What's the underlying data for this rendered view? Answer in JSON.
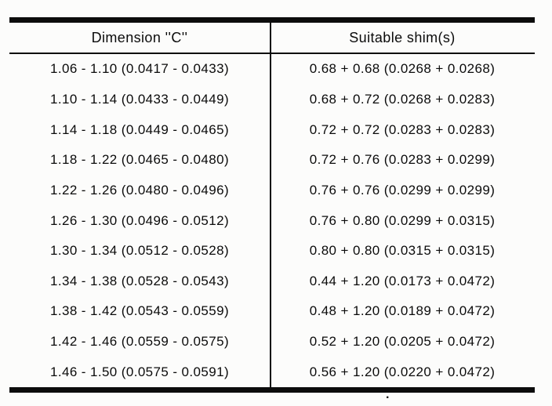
{
  "table": {
    "headers": {
      "dimension": "Dimension ''C''",
      "shims": "Suitable shim(s)"
    },
    "rows": [
      {
        "dimension": "1.06 - 1.10 (0.0417 - 0.0433)",
        "shims": "0.68 + 0.68 (0.0268 + 0.0268)"
      },
      {
        "dimension": "1.10 - 1.14 (0.0433 - 0.0449)",
        "shims": "0.68 + 0.72 (0.0268 + 0.0283)"
      },
      {
        "dimension": "1.14 - 1.18 (0.0449 - 0.0465)",
        "shims": "0.72 + 0.72 (0.0283 + 0.0283)"
      },
      {
        "dimension": "1.18 - 1.22 (0.0465 - 0.0480)",
        "shims": "0.72 + 0.76 (0.0283 + 0.0299)"
      },
      {
        "dimension": "1.22 - 1.26 (0.0480 - 0.0496)",
        "shims": "0.76 + 0.76 (0.0299 + 0.0299)"
      },
      {
        "dimension": "1.26 - 1.30 (0.0496 - 0.0512)",
        "shims": "0.76 + 0.80 (0.0299 + 0.0315)"
      },
      {
        "dimension": "1.30 - 1.34 (0.0512 - 0.0528)",
        "shims": "0.80 + 0.80 (0.0315 + 0.0315)"
      },
      {
        "dimension": "1.34 - 1.38 (0.0528 - 0.0543)",
        "shims": "0.44 + 1.20 (0.0173 + 0.0472)"
      },
      {
        "dimension": "1.38 - 1.42 (0.0543 - 0.0559)",
        "shims": "0.48 + 1.20 (0.0189 + 0.0472)"
      },
      {
        "dimension": "1.42 - 1.46 (0.0559 - 0.0575)",
        "shims": "0.52 + 1.20 (0.0205 + 0.0472)"
      },
      {
        "dimension": "1.46 - 1.50 (0.0575 - 0.0591)",
        "shims": "0.56 + 1.20 (0.0220 + 0.0472)"
      }
    ]
  },
  "artifacts": {
    "dot": "."
  }
}
